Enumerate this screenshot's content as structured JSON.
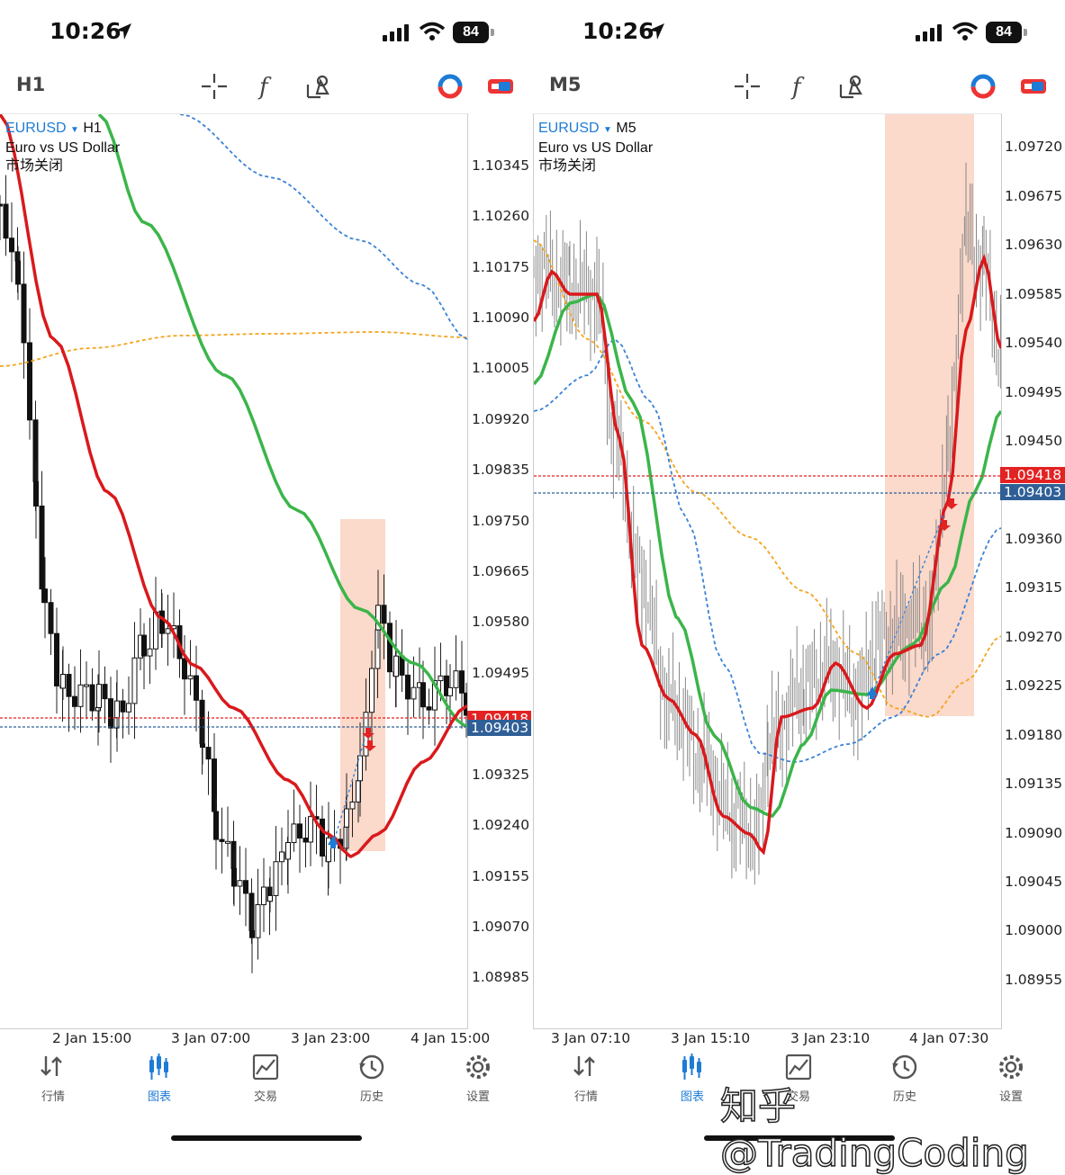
{
  "status_bar": {
    "time": "10:26",
    "battery": "84"
  },
  "left": {
    "toolbar_timeframe": "H1",
    "symbol": "EURUSD",
    "timeframe": "H1",
    "description": "Euro vs US Dollar",
    "market_status": "市场关闭",
    "price_axis": [
      "1.10345",
      "1.10260",
      "1.10175",
      "1.10090",
      "1.10005",
      "1.09920",
      "1.09835",
      "1.09750",
      "1.09665",
      "1.09580",
      "1.09495",
      "1.09325",
      "1.09240",
      "1.09155",
      "1.09070",
      "1.08985"
    ],
    "ask_tag": "1.09418",
    "bid_tag": "1.09403",
    "time_axis": [
      "2 Jan 15:00",
      "3 Jan 07:00",
      "3 Jan 23:00",
      "4 Jan 15:00"
    ]
  },
  "right": {
    "toolbar_timeframe": "M5",
    "symbol": "EURUSD",
    "timeframe": "M5",
    "description": "Euro vs US Dollar",
    "market_status": "市场关闭",
    "price_axis": [
      "1.09720",
      "1.09675",
      "1.09630",
      "1.09585",
      "1.09540",
      "1.09495",
      "1.09450",
      "1.09360",
      "1.09315",
      "1.09270",
      "1.09225",
      "1.09180",
      "1.09135",
      "1.09090",
      "1.09045",
      "1.09000",
      "1.08955"
    ],
    "ask_tag": "1.09418",
    "bid_tag": "1.09403",
    "time_axis": [
      "3 Jan 07:10",
      "3 Jan 15:10",
      "3 Jan 23:10",
      "4 Jan 07:30"
    ]
  },
  "tabs": [
    {
      "label": "行情",
      "icon": "quotes-icon"
    },
    {
      "label": "图表",
      "icon": "chart-icon"
    },
    {
      "label": "交易",
      "icon": "trade-icon"
    },
    {
      "label": "历史",
      "icon": "history-icon"
    },
    {
      "label": "设置",
      "icon": "settings-icon"
    }
  ],
  "colors": {
    "accent": "#1e7bd6",
    "ask": "#e32222",
    "bid": "#2f5f96",
    "ma_red": "#d9191c",
    "ma_green": "#3bb54a",
    "ma_orange": "#f4a41f",
    "ma_blue": "#3b82d6",
    "highlight": "#fbd9cb"
  },
  "watermark": "知乎 @TradingCoding"
}
